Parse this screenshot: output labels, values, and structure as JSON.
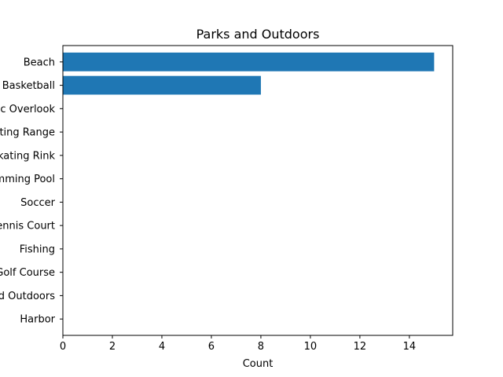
{
  "chart_data": {
    "type": "bar",
    "orientation": "horizontal",
    "title": "Parks and Outdoors",
    "xlabel": "Count",
    "ylabel": "",
    "xlim": [
      0,
      15.75
    ],
    "xticks": [
      0,
      2,
      4,
      6,
      8,
      10,
      12,
      14
    ],
    "categories": [
      "Beach",
      "Basketball",
      "Scenic Overlook",
      "Shooting Range",
      "Skating Rink",
      "Swimming Pool",
      "Soccer",
      "Tennis Court",
      "Fishing",
      "Golf Course",
      "Parks and Outdoors",
      "Harbor"
    ],
    "values": [
      15,
      8,
      0,
      0,
      0,
      0,
      0,
      0,
      0,
      0,
      0,
      0
    ],
    "bar_color": "#1f77b4",
    "grid": false
  }
}
